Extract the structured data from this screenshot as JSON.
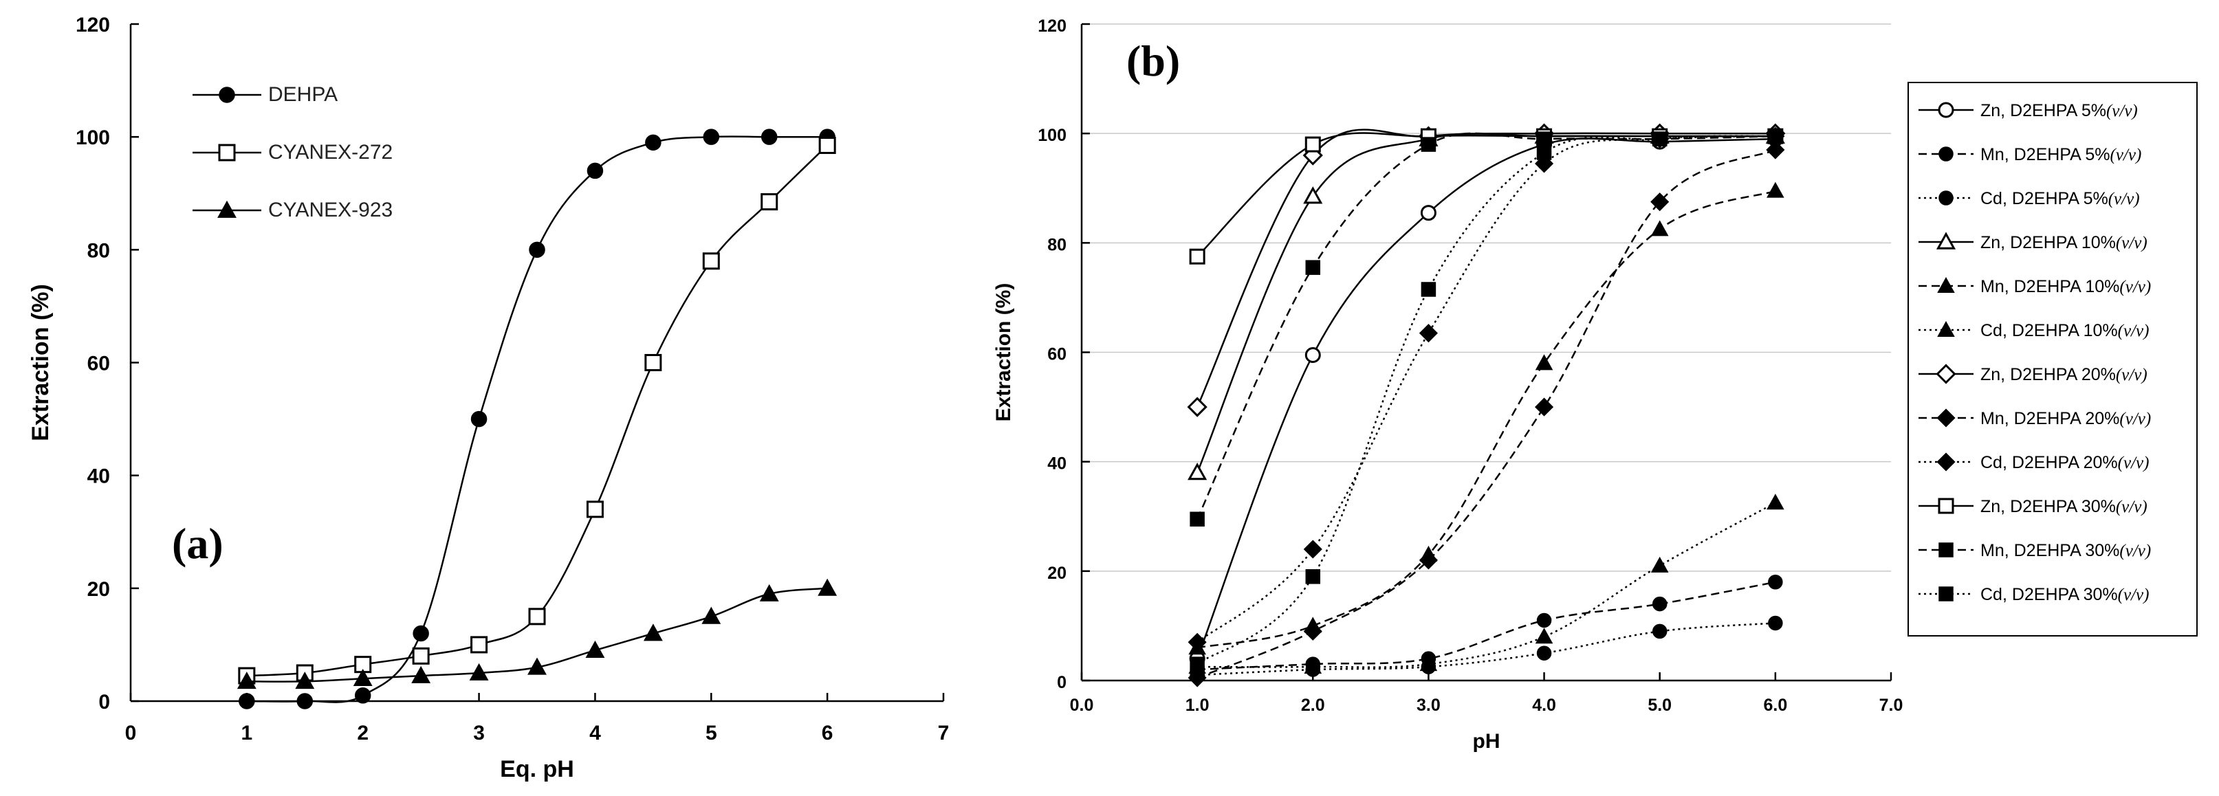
{
  "chart_data": [
    {
      "type": "line",
      "panel_label": "(a)",
      "xlabel": "Eq. pH",
      "ylabel": "Extraction (%)",
      "xlim": [
        0,
        7
      ],
      "ylim": [
        0,
        120
      ],
      "xticks": [
        "0",
        "1",
        "2",
        "3",
        "4",
        "5",
        "6",
        "7"
      ],
      "yticks": [
        "0",
        "20",
        "40",
        "60",
        "80",
        "100",
        "120"
      ],
      "grid": false,
      "legend_position": "top-left",
      "series": [
        {
          "name": "DEHPA",
          "marker": "circle-filled",
          "line": "solid",
          "x": [
            1,
            1.5,
            2,
            2.5,
            3,
            3.5,
            4,
            4.5,
            5,
            5.5,
            6
          ],
          "y": [
            0,
            0,
            1,
            12,
            50,
            80,
            94,
            99,
            100,
            100,
            100
          ]
        },
        {
          "name": "CYANEX-272",
          "marker": "square-open",
          "line": "solid",
          "x": [
            1,
            1.5,
            2,
            2.5,
            3,
            3.5,
            4,
            4.5,
            5,
            5.5,
            6
          ],
          "y": [
            4.5,
            5,
            6.5,
            8,
            10,
            15,
            34,
            60,
            78,
            88.5,
            98.5
          ]
        },
        {
          "name": "CYANEX-923",
          "marker": "triangle-filled",
          "line": "solid",
          "x": [
            1,
            1.5,
            2,
            2.5,
            3,
            3.5,
            4,
            4.5,
            5,
            5.5,
            6
          ],
          "y": [
            3.5,
            3.5,
            4,
            4.5,
            5,
            6,
            9,
            12,
            15,
            19,
            20
          ]
        }
      ]
    },
    {
      "type": "line",
      "panel_label": "(b)",
      "xlabel": "pH",
      "ylabel": "Extraction (%)",
      "xlim": [
        0,
        7
      ],
      "ylim": [
        0,
        120
      ],
      "xticks": [
        "0.0",
        "1.0",
        "2.0",
        "3.0",
        "4.0",
        "5.0",
        "6.0",
        "7.0"
      ],
      "yticks": [
        "0",
        "20",
        "40",
        "60",
        "80",
        "100",
        "120"
      ],
      "grid": true,
      "legend_position": "right",
      "legend_unit": "(v/v)",
      "series": [
        {
          "name": "Zn, D2EHPA 5%",
          "marker": "circle-open",
          "line": "solid",
          "x": [
            1,
            2,
            3,
            4,
            5,
            6
          ],
          "y": [
            4,
            59.5,
            85.5,
            98,
            98.5,
            99
          ]
        },
        {
          "name": "Mn, D2EHPA 5%",
          "marker": "circle-filled",
          "line": "dashed",
          "x": [
            1,
            2,
            3,
            4,
            5,
            6
          ],
          "y": [
            2,
            3,
            4,
            11,
            14,
            18
          ]
        },
        {
          "name": "Cd, D2EHPA 5%",
          "marker": "circle-filled",
          "line": "dotted",
          "x": [
            1,
            2,
            3,
            4,
            5,
            6
          ],
          "y": [
            1,
            2,
            2.5,
            5,
            9,
            10.5
          ]
        },
        {
          "name": "Zn, D2EHPA 10%",
          "marker": "triangle-open",
          "line": "solid",
          "x": [
            1,
            2,
            3,
            4,
            5,
            6
          ],
          "y": [
            38,
            88.5,
            99,
            99.5,
            99.5,
            99.5
          ]
        },
        {
          "name": "Mn, D2EHPA 10%",
          "marker": "triangle-filled",
          "line": "dashed",
          "x": [
            1,
            2,
            3,
            4,
            5,
            6
          ],
          "y": [
            6,
            10,
            23,
            58,
            82.5,
            89.5
          ]
        },
        {
          "name": "Cd, D2EHPA 10%",
          "marker": "triangle-filled",
          "line": "dotted",
          "x": [
            1,
            2,
            3,
            4,
            5,
            6
          ],
          "y": [
            2.5,
            2.5,
            3,
            8,
            21,
            32.5
          ]
        },
        {
          "name": "Zn, D2EHPA 20%",
          "marker": "diamond-open",
          "line": "solid",
          "x": [
            1,
            2,
            3,
            4,
            5,
            6
          ],
          "y": [
            50,
            96,
            99.5,
            100,
            100,
            100
          ]
        },
        {
          "name": "Mn, D2EHPA 20%",
          "marker": "diamond-filled",
          "line": "dashed",
          "x": [
            1,
            2,
            3,
            4,
            5,
            6
          ],
          "y": [
            0.5,
            9,
            22,
            50,
            87.5,
            97
          ]
        },
        {
          "name": "Cd, D2EHPA 20%",
          "marker": "diamond-filled",
          "line": "dotted",
          "x": [
            1,
            2,
            3,
            4,
            5,
            6
          ],
          "y": [
            7,
            24,
            63.5,
            94.5,
            99,
            99.5
          ]
        },
        {
          "name": "Zn, D2EHPA 30%",
          "marker": "square-open",
          "line": "solid",
          "x": [
            1,
            2,
            3,
            4,
            5,
            6
          ],
          "y": [
            77.5,
            98,
            99.5,
            99.5,
            99.5,
            99.5
          ]
        },
        {
          "name": "Mn, D2EHPA 30%",
          "marker": "square-filled",
          "line": "dashed",
          "x": [
            1,
            2,
            3,
            4,
            5,
            6
          ],
          "y": [
            29.5,
            75.5,
            98,
            99,
            99,
            99.5
          ]
        },
        {
          "name": "Cd, D2EHPA 30%",
          "marker": "square-filled",
          "line": "dotted",
          "x": [
            1,
            2,
            3,
            4,
            5,
            6
          ],
          "y": [
            3,
            19,
            71.5,
            96.5,
            99,
            99.5
          ]
        }
      ]
    }
  ]
}
